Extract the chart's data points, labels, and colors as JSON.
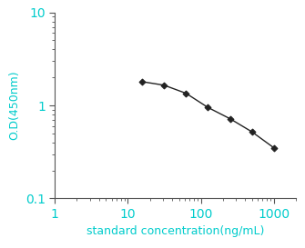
{
  "x": [
    15.6,
    31.25,
    62.5,
    125,
    250,
    500,
    1000
  ],
  "y": [
    1.8,
    1.65,
    1.35,
    0.95,
    0.72,
    0.52,
    0.35
  ],
  "xlim": [
    3,
    2000
  ],
  "ylim": [
    0.1,
    10
  ],
  "xlabel": "standard concentration(ng/mL)",
  "ylabel": "O.D(450nm)",
  "label_color": "#00cccc",
  "tick_label_color": "#00cccc",
  "spine_color": "#555555",
  "line_color": "#222222",
  "marker": "D",
  "marker_size": 3.5,
  "marker_color": "#222222",
  "line_width": 1.0,
  "xlabel_fontsize": 9,
  "ylabel_fontsize": 9,
  "tick_fontsize": 10,
  "xtick_majors": [
    1,
    10,
    100,
    1000
  ],
  "xtick_labels": [
    "1",
    "10",
    "100",
    "1000"
  ],
  "ytick_majors": [
    0.1,
    1,
    10
  ],
  "ytick_labels": [
    "0.1",
    "1",
    "10"
  ],
  "background_color": "#ffffff"
}
